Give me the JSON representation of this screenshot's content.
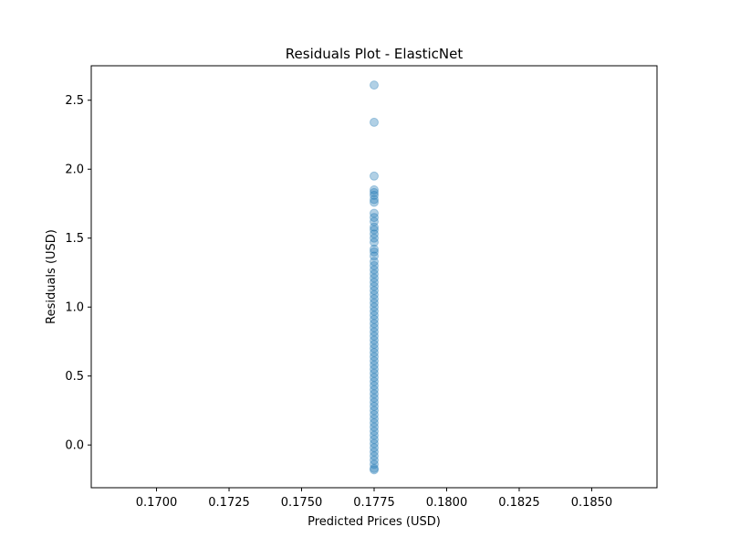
{
  "chart_data": {
    "type": "scatter",
    "title": "Residuals Plot - ElasticNet",
    "xlabel": "Predicted Prices (USD)",
    "ylabel": "Residuals (USD)",
    "xlim": [
      0.16775,
      0.18725
    ],
    "ylim": [
      -0.31,
      2.75
    ],
    "xticks": [
      0.17,
      0.1725,
      0.175,
      0.1775,
      0.18,
      0.1825,
      0.185
    ],
    "xtick_labels": [
      "0.1700",
      "0.1725",
      "0.1750",
      "0.1775",
      "0.1800",
      "0.1825",
      "0.1850"
    ],
    "yticks": [
      0.0,
      0.5,
      1.0,
      1.5,
      2.0,
      2.5
    ],
    "ytick_labels": [
      "0.0",
      "0.5",
      "1.0",
      "1.5",
      "2.0",
      "2.5"
    ],
    "grid": false,
    "legend": "none",
    "marker_color": "#1f77b4",
    "marker_alpha": 0.35,
    "series": [
      {
        "x_constant": 0.1775,
        "y": [
          2.61,
          2.34,
          1.95,
          1.85,
          1.83,
          1.81,
          1.78,
          1.76,
          1.68,
          1.65,
          1.62,
          1.58,
          1.56,
          1.53,
          1.5,
          1.47,
          1.42,
          1.4,
          1.37,
          1.33,
          1.3,
          1.27,
          1.24,
          1.21,
          1.18,
          1.15,
          1.12,
          1.09,
          1.06,
          1.03,
          1.0,
          0.97,
          0.94,
          0.91,
          0.88,
          0.85,
          0.82,
          0.79,
          0.76,
          0.73,
          0.7,
          0.67,
          0.64,
          0.61,
          0.58,
          0.55,
          0.52,
          0.49,
          0.46,
          0.43,
          0.4,
          0.37,
          0.34,
          0.31,
          0.28,
          0.25,
          0.22,
          0.19,
          0.16,
          0.13,
          0.1,
          0.07,
          0.04,
          0.01,
          -0.02,
          -0.05,
          -0.08,
          -0.11,
          -0.14,
          -0.17,
          -0.18
        ]
      }
    ]
  }
}
